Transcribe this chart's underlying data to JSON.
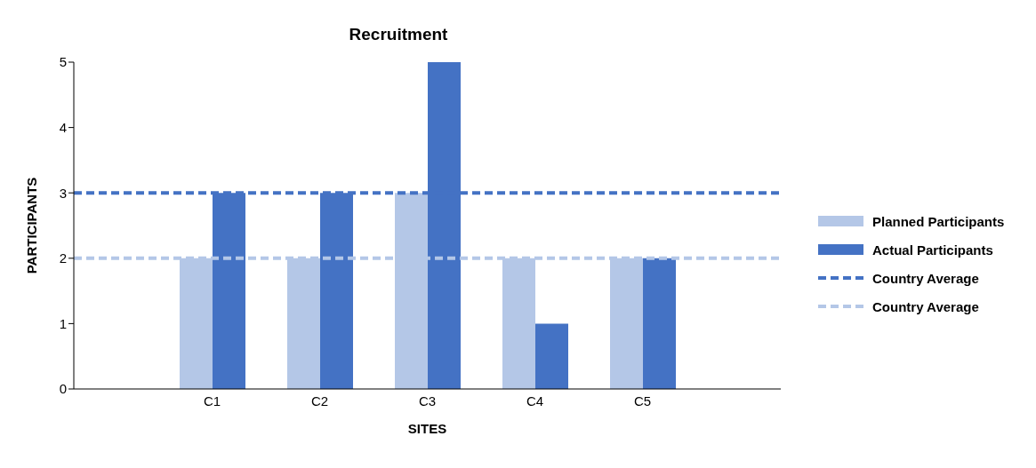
{
  "chart_data": {
    "type": "bar",
    "title": "Recruitment",
    "xlabel": "SITES",
    "ylabel": "PARTICIPANTS",
    "categories": [
      "C1",
      "C2",
      "C3",
      "C4",
      "C5"
    ],
    "series": [
      {
        "name": "Planned Participants",
        "color": "#b4c7e7",
        "values": [
          2,
          2,
          3,
          2,
          2
        ]
      },
      {
        "name": "Actual Participants",
        "color": "#4472c4",
        "values": [
          3,
          3,
          5,
          1,
          2
        ]
      }
    ],
    "ref_lines": [
      {
        "axis": "y",
        "value": 3,
        "label": "Country Average",
        "color": "#4472c4",
        "line_style": "dashed"
      },
      {
        "axis": "y",
        "value": 2,
        "label": "Country Average",
        "color": "#b4c7e7",
        "line_style": "dashed"
      }
    ],
    "ylim": [
      0,
      5
    ],
    "yticks": [
      0,
      1,
      2,
      3,
      4,
      5
    ],
    "grid": false,
    "legend": "right"
  }
}
